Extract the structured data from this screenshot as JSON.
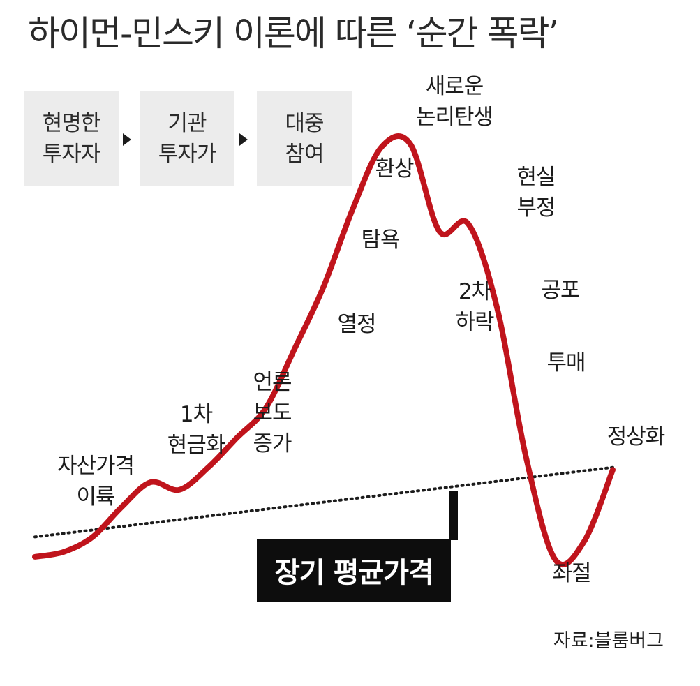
{
  "title": "하이먼-민스키 이론에 따른 ‘순간 폭락’",
  "stages": [
    {
      "label": "현명한\n투자자"
    },
    {
      "label": "기관\n투자가"
    },
    {
      "label": "대중\n참여"
    }
  ],
  "chart_data": {
    "type": "line",
    "x": [
      0,
      5,
      10,
      15,
      20,
      25,
      30,
      35,
      40,
      45,
      50,
      55,
      60,
      65,
      70,
      75,
      80,
      85,
      90,
      95,
      100
    ],
    "series": [
      {
        "values": [
          2,
          4,
          10,
          22,
          32,
          29,
          38,
          50,
          62,
          86,
          111,
          142,
          167,
          168,
          133,
          136,
          102,
          42,
          1,
          8,
          37
        ]
      }
    ],
    "trend": {
      "start": 10,
      "end": 38
    },
    "annotations": [
      {
        "x": 8,
        "label": "자산가격\n이륙"
      },
      {
        "x": 23,
        "label": "1차\n현금화"
      },
      {
        "x": 33,
        "label": "언론\n보도\n증가"
      },
      {
        "x": 45,
        "label": "열정"
      },
      {
        "x": 50,
        "label": "탐욕"
      },
      {
        "x": 53,
        "label": "환상"
      },
      {
        "x": 65,
        "label": "새로운\n논리탄생"
      },
      {
        "x": 68,
        "label": "2차\n하락"
      },
      {
        "x": 78,
        "label": "현실\n부정"
      },
      {
        "x": 82,
        "label": "공포"
      },
      {
        "x": 86,
        "label": "투매"
      },
      {
        "x": 92,
        "label": "좌절"
      },
      {
        "x": 100,
        "label": "정상화"
      }
    ],
    "avg_label": "장기 평균가격",
    "colors": {
      "curve": "#c0141c",
      "trend": "#1c1c1c"
    }
  },
  "source": "자료:블룸버그"
}
